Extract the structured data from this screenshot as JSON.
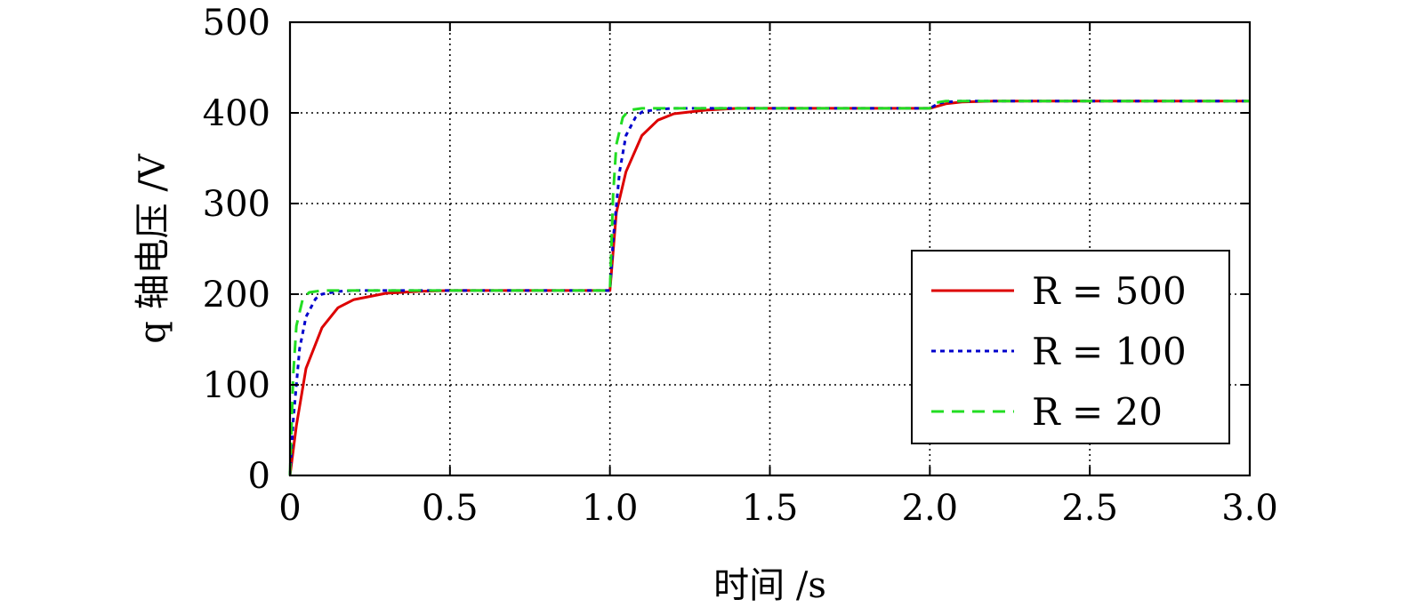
{
  "chart_data": {
    "type": "line",
    "xlabel": "时间 /s",
    "ylabel": "q 轴电压 /V",
    "xlim": [
      0,
      3.0
    ],
    "ylim": [
      0,
      500
    ],
    "xticks": [
      "0",
      "0.5",
      "1.0",
      "1.5",
      "2.0",
      "2.5",
      "3.0"
    ],
    "yticks": [
      "0",
      "100",
      "200",
      "300",
      "400",
      "500"
    ],
    "grid": true,
    "legend_position": "right",
    "series": [
      {
        "name": "R = 500",
        "color": "#dd0000",
        "dash": "solid",
        "x": [
          0,
          0.02,
          0.05,
          0.1,
          0.15,
          0.2,
          0.3,
          0.4,
          0.5,
          0.7,
          1.0,
          1.02,
          1.05,
          1.1,
          1.15,
          1.2,
          1.3,
          1.4,
          1.5,
          1.7,
          2.0,
          2.05,
          2.1,
          2.2,
          2.5,
          3.0
        ],
        "y": [
          0,
          55,
          118,
          163,
          185,
          194,
          201,
          203,
          204,
          204,
          204,
          290,
          335,
          375,
          392,
          399,
          403,
          405,
          405,
          405,
          405,
          410,
          412,
          413,
          413,
          413
        ]
      },
      {
        "name": "R = 100",
        "color": "#0000cc",
        "dash": "dotted",
        "x": [
          0,
          0.01,
          0.03,
          0.05,
          0.08,
          0.1,
          0.15,
          0.2,
          0.5,
          1.0,
          1.01,
          1.03,
          1.05,
          1.08,
          1.1,
          1.15,
          1.2,
          1.5,
          2.0,
          2.03,
          2.05,
          2.1,
          2.5,
          3.0
        ],
        "y": [
          0,
          60,
          140,
          175,
          195,
          200,
          203,
          204,
          204,
          204,
          260,
          335,
          375,
          395,
          401,
          404,
          405,
          405,
          405,
          411,
          412,
          413,
          413,
          413
        ]
      },
      {
        "name": "R = 20",
        "color": "#22dd22",
        "dash": "dashed",
        "x": [
          0,
          0.01,
          0.02,
          0.04,
          0.06,
          0.1,
          0.5,
          1.0,
          1.01,
          1.02,
          1.04,
          1.06,
          1.1,
          1.5,
          2.0,
          2.01,
          2.03,
          2.05,
          2.5,
          3.0
        ],
        "y": [
          0,
          110,
          165,
          195,
          202,
          204,
          204,
          204,
          310,
          365,
          395,
          403,
          405,
          405,
          405,
          410,
          412,
          413,
          413,
          413
        ]
      }
    ]
  }
}
